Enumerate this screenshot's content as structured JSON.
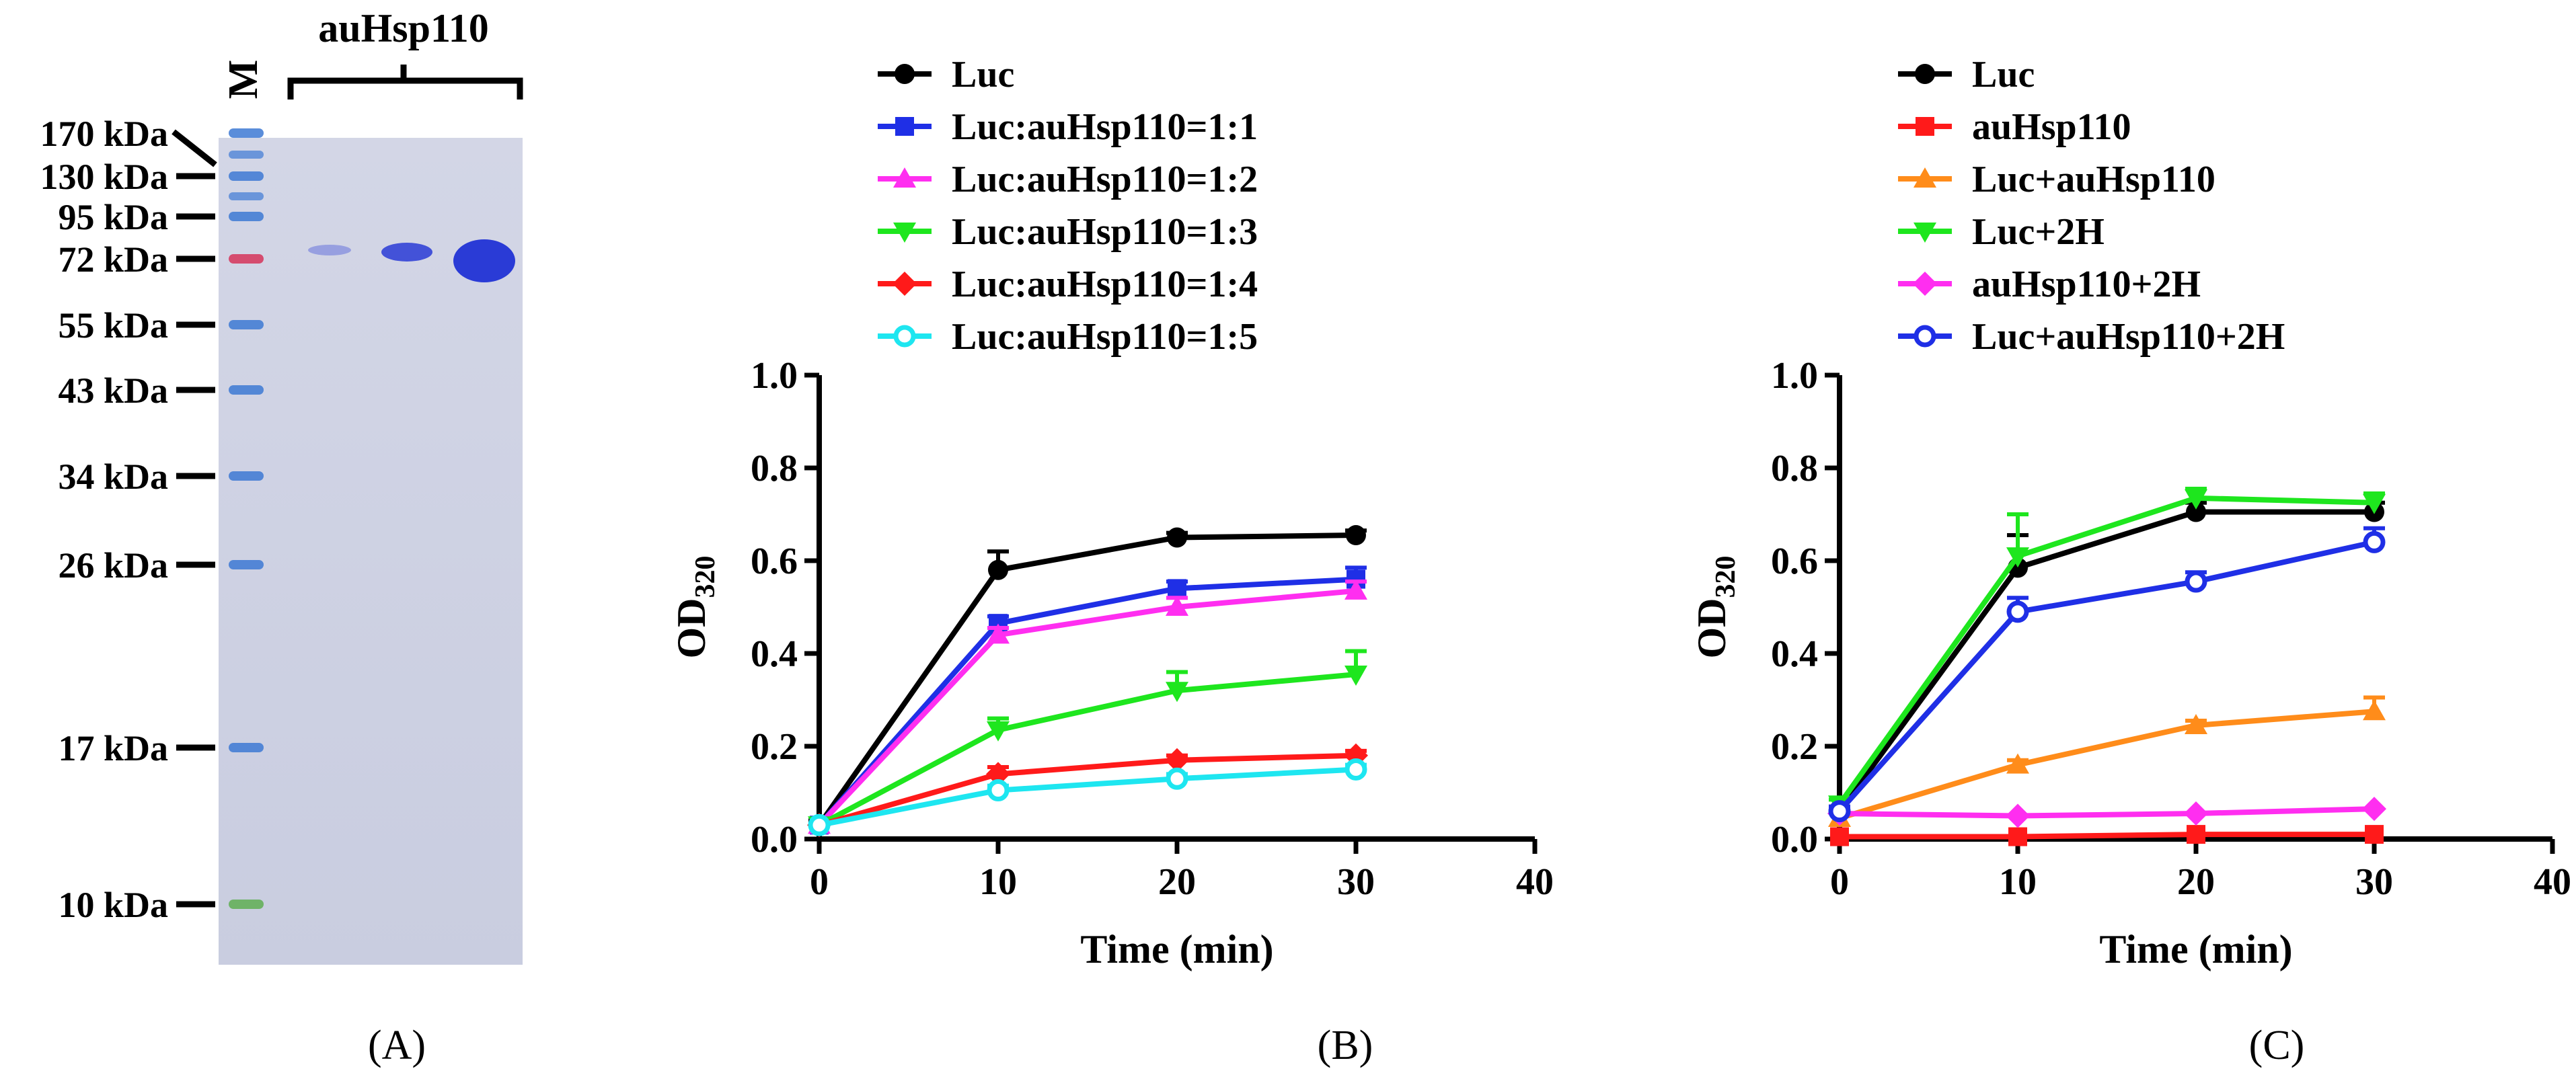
{
  "figure": {
    "panel_labels": [
      "(A)",
      "(B)",
      "(C)"
    ]
  },
  "gel": {
    "lane_marker": "M",
    "sample_title": "auHsp110",
    "markers": [
      "170 kDa",
      "130 kDa",
      "95 kDa",
      "72 kDa",
      "55 kDa",
      "43 kDa",
      "34 kDa",
      "26 kDa",
      "17 kDa",
      "10 kDa"
    ],
    "gel_color": "#cfd3e4",
    "band_color": "#2a3bd6",
    "ladder_color": "#3d79d4"
  },
  "chart_data": [
    {
      "type": "line",
      "panel": "(B)",
      "title": "",
      "xlabel": "Time (min)",
      "ylabel_main": "OD",
      "ylabel_sub": "320",
      "xlim": [
        0,
        40
      ],
      "ylim": [
        0,
        1.0
      ],
      "xticks": [
        0,
        10,
        20,
        30,
        40
      ],
      "yticks": [
        0.0,
        0.2,
        0.4,
        0.6,
        0.8,
        1.0
      ],
      "xtick_labels": [
        "0",
        "10",
        "20",
        "30",
        "40"
      ],
      "ytick_labels": [
        "0.0",
        "0.2",
        "0.4",
        "0.6",
        "0.8",
        "1.0"
      ],
      "legend_position": "top",
      "x": [
        0,
        10,
        20,
        30
      ],
      "series": [
        {
          "name": "Luc",
          "color": "#000000",
          "marker": "circle",
          "values": [
            0.03,
            0.58,
            0.65,
            0.655
          ],
          "errors": [
            0.01,
            0.04,
            0.01,
            0.01
          ]
        },
        {
          "name": "Luc:auHsp110=1:1",
          "color": "#1f2fe6",
          "marker": "square",
          "values": [
            0.03,
            0.465,
            0.54,
            0.56
          ],
          "errors": [
            0.005,
            0.015,
            0.015,
            0.025
          ]
        },
        {
          "name": "Luc:auHsp110=1:2",
          "color": "#ff2ef0",
          "marker": "triangle-up",
          "values": [
            0.03,
            0.44,
            0.5,
            0.535
          ],
          "errors": [
            0.005,
            0.015,
            0.02,
            0.02
          ]
        },
        {
          "name": "Luc:auHsp110=1:3",
          "color": "#1ee61e",
          "marker": "triangle-down",
          "values": [
            0.03,
            0.235,
            0.32,
            0.355
          ],
          "errors": [
            0.005,
            0.025,
            0.04,
            0.05
          ]
        },
        {
          "name": "Luc:auHsp110=1:4",
          "color": "#ff1a1a",
          "marker": "diamond",
          "values": [
            0.03,
            0.14,
            0.17,
            0.18
          ],
          "errors": [
            0.005,
            0.015,
            0.01,
            0.01
          ]
        },
        {
          "name": "Luc:auHsp110=1:5",
          "color": "#1ee6f0",
          "marker": "circle-open",
          "values": [
            0.03,
            0.105,
            0.13,
            0.15
          ],
          "errors": [
            0.005,
            0.01,
            0.01,
            0.01
          ]
        }
      ]
    },
    {
      "type": "line",
      "panel": "(C)",
      "title": "",
      "xlabel": "Time (min)",
      "ylabel_main": "OD",
      "ylabel_sub": "320",
      "xlim": [
        0,
        40
      ],
      "ylim": [
        0,
        1.0
      ],
      "xticks": [
        0,
        10,
        20,
        30,
        40
      ],
      "yticks": [
        0.0,
        0.2,
        0.4,
        0.6,
        0.8,
        1.0
      ],
      "xtick_labels": [
        "0",
        "10",
        "20",
        "30",
        "40"
      ],
      "ytick_labels": [
        "0.0",
        "0.2",
        "0.4",
        "0.6",
        "0.8",
        "1.0"
      ],
      "legend_position": "top",
      "x": [
        0,
        10,
        20,
        30
      ],
      "series": [
        {
          "name": "Luc",
          "color": "#000000",
          "marker": "circle",
          "values": [
            0.06,
            0.585,
            0.705,
            0.705
          ],
          "errors": [
            0.01,
            0.07,
            0.02,
            0.02
          ]
        },
        {
          "name": "auHsp110",
          "color": "#ff1a1a",
          "marker": "square",
          "values": [
            0.005,
            0.005,
            0.01,
            0.01
          ],
          "errors": [
            0.005,
            0.005,
            0.005,
            0.005
          ]
        },
        {
          "name": "Luc+auHsp110",
          "color": "#ff8c1a",
          "marker": "triangle-up",
          "values": [
            0.045,
            0.16,
            0.245,
            0.275
          ],
          "errors": [
            0.005,
            0.01,
            0.01,
            0.03
          ]
        },
        {
          "name": "Luc+2H",
          "color": "#1ee61e",
          "marker": "triangle-down",
          "values": [
            0.075,
            0.61,
            0.735,
            0.725
          ],
          "errors": [
            0.01,
            0.09,
            0.02,
            0.02
          ]
        },
        {
          "name": "auHsp110+2H",
          "color": "#ff2ef0",
          "marker": "diamond",
          "values": [
            0.055,
            0.05,
            0.055,
            0.065
          ],
          "errors": [
            0.005,
            0.005,
            0.005,
            0.005
          ]
        },
        {
          "name": "Luc+auHsp110+2H",
          "color": "#1f2fe6",
          "marker": "circle-open",
          "values": [
            0.06,
            0.49,
            0.555,
            0.64
          ],
          "errors": [
            0.01,
            0.03,
            0.02,
            0.03
          ]
        }
      ]
    }
  ]
}
